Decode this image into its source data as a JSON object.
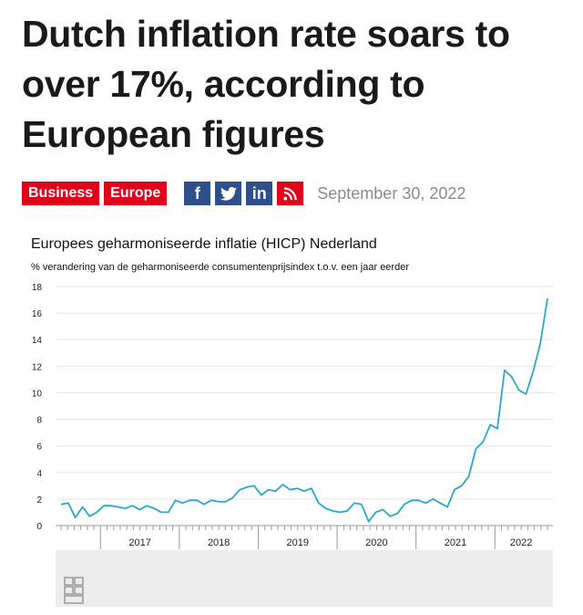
{
  "article": {
    "headline": "Dutch inflation rate soars to over 17%, according to European figures",
    "tags": [
      "Business",
      "Europe"
    ],
    "share": {
      "facebook": "f",
      "twitter": "t",
      "linkedin": "in",
      "rss": "rss"
    },
    "date": "September 30, 2022"
  },
  "colors": {
    "accent": "#e3001b",
    "share_blue": "#2e4e8c",
    "line": "#2aa8c7"
  },
  "chart_data": {
    "type": "line",
    "title": "Europees geharmoniseerde inflatie (HICP) Nederland",
    "subtitle": "% verandering van de geharmoniseerde consumentenprijsindex t.o.v. een jaar eerder",
    "xlabel": "",
    "ylabel": "",
    "ylim": [
      0,
      18
    ],
    "yticks": [
      0,
      2,
      4,
      6,
      8,
      10,
      12,
      14,
      16,
      18
    ],
    "xticks": [
      "2017",
      "2018",
      "2019",
      "2020",
      "2021",
      "2022"
    ],
    "x_start": "2016-07",
    "x_end": "2022-09",
    "grid": "horizontal",
    "series": [
      {
        "values": [
          1.6,
          1.7,
          0.6,
          1.4,
          0.7,
          1.0,
          1.5,
          1.5,
          1.4,
          1.3,
          1.5,
          1.2,
          1.5,
          1.3,
          1.0,
          1.0,
          1.9,
          1.7,
          1.9,
          1.9,
          1.6,
          1.9,
          1.8,
          1.8,
          2.1,
          2.7,
          2.9,
          3.0,
          2.3,
          2.7,
          2.6,
          3.1,
          2.7,
          2.8,
          2.6,
          2.8,
          1.7,
          1.3,
          1.1,
          1.0,
          1.1,
          1.7,
          1.6,
          0.3,
          1.0,
          1.2,
          0.7,
          0.9,
          1.6,
          1.9,
          1.9,
          1.7,
          2.0,
          1.7,
          1.4,
          2.7,
          3.0,
          3.7,
          5.8,
          6.3,
          7.6,
          7.3,
          11.7,
          11.2,
          10.2,
          9.9,
          11.6,
          13.7,
          17.1
        ]
      }
    ]
  }
}
